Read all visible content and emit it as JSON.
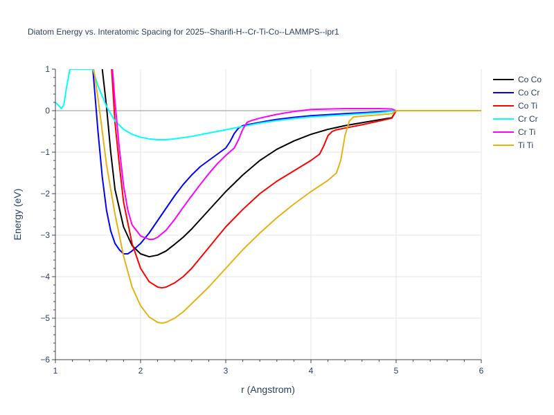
{
  "chart_data": {
    "type": "line",
    "title": "Diatom Energy vs. Interatomic Spacing for 2025--Sharifi-H--Cr-Ti-Co--LAMMPS--ipr1",
    "xlabel": "r (Angstrom)",
    "ylabel": "Energy (eV)",
    "xlim": [
      1,
      6
    ],
    "ylim": [
      -6,
      1
    ],
    "xticks": [
      "1",
      "2",
      "3",
      "4",
      "5",
      "6"
    ],
    "yticks": [
      "−6",
      "−5",
      "−4",
      "−3",
      "−2",
      "−1",
      "0",
      "1"
    ],
    "grid": true,
    "legend_position": "top-right",
    "series": [
      {
        "name": "Co Co",
        "color": "#000000",
        "x": [
          1.55,
          1.6,
          1.65,
          1.7,
          1.8,
          1.9,
          2.0,
          2.1,
          2.2,
          2.3,
          2.4,
          2.5,
          2.6,
          2.8,
          3.0,
          3.2,
          3.4,
          3.6,
          3.8,
          4.0,
          4.2,
          4.4,
          4.6,
          4.8,
          4.95,
          5.0,
          6.0
        ],
        "y": [
          1.0,
          0.1,
          -1.0,
          -1.9,
          -2.8,
          -3.25,
          -3.45,
          -3.52,
          -3.48,
          -3.38,
          -3.22,
          -3.05,
          -2.85,
          -2.4,
          -1.95,
          -1.55,
          -1.2,
          -0.93,
          -0.73,
          -0.57,
          -0.45,
          -0.36,
          -0.29,
          -0.22,
          -0.17,
          0.0,
          0.0
        ]
      },
      {
        "name": "Co Cr",
        "color": "#0000ff",
        "x": [
          1.44,
          1.5,
          1.55,
          1.6,
          1.65,
          1.7,
          1.75,
          1.8,
          1.85,
          1.9,
          2.0,
          2.1,
          2.2,
          2.3,
          2.4,
          2.5,
          2.6,
          2.7,
          2.8,
          2.9,
          3.0,
          3.05,
          3.1,
          3.15,
          3.2,
          3.4,
          3.6,
          3.8,
          4.0,
          4.4,
          4.8,
          5.0,
          6.0
        ],
        "y": [
          1.0,
          -0.5,
          -1.6,
          -2.4,
          -2.9,
          -3.2,
          -3.35,
          -3.45,
          -3.45,
          -3.38,
          -3.2,
          -2.95,
          -2.65,
          -2.35,
          -2.05,
          -1.78,
          -1.55,
          -1.35,
          -1.2,
          -1.05,
          -0.9,
          -0.75,
          -0.55,
          -0.42,
          -0.36,
          -0.28,
          -0.21,
          -0.16,
          -0.12,
          -0.07,
          -0.03,
          0.0,
          0.0
        ]
      },
      {
        "name": "Co Ti",
        "color": "#ff0000",
        "x": [
          1.66,
          1.7,
          1.75,
          1.8,
          1.9,
          2.0,
          2.1,
          2.2,
          2.25,
          2.3,
          2.4,
          2.5,
          2.6,
          2.8,
          3.0,
          3.2,
          3.4,
          3.6,
          3.8,
          4.0,
          4.1,
          4.15,
          4.2,
          4.25,
          4.3,
          4.4,
          4.6,
          4.8,
          4.95,
          5.0,
          6.0
        ],
        "y": [
          1.0,
          -0.3,
          -1.3,
          -2.2,
          -3.2,
          -3.8,
          -4.12,
          -4.25,
          -4.27,
          -4.25,
          -4.15,
          -4.0,
          -3.8,
          -3.3,
          -2.8,
          -2.38,
          -2.0,
          -1.7,
          -1.45,
          -1.2,
          -1.05,
          -0.85,
          -0.6,
          -0.5,
          -0.46,
          -0.42,
          -0.34,
          -0.25,
          -0.18,
          0.0,
          0.0
        ]
      },
      {
        "name": "Cr Cr",
        "color": "#00ffff",
        "x": [
          1.0,
          1.04,
          1.07,
          1.1,
          1.13,
          1.17,
          1.44,
          1.5,
          1.6,
          1.7,
          1.8,
          1.9,
          2.0,
          2.1,
          2.2,
          2.3,
          2.4,
          2.6,
          2.8,
          3.0,
          3.2,
          3.4,
          3.6,
          3.8,
          4.0,
          4.4,
          4.8,
          5.0,
          6.0
        ],
        "y": [
          0.2,
          0.12,
          0.05,
          0.15,
          0.55,
          1.0,
          1.0,
          0.6,
          0.1,
          -0.25,
          -0.45,
          -0.57,
          -0.64,
          -0.68,
          -0.7,
          -0.7,
          -0.68,
          -0.62,
          -0.54,
          -0.46,
          -0.38,
          -0.3,
          -0.24,
          -0.19,
          -0.15,
          -0.1,
          -0.05,
          0.0,
          0.0
        ]
      },
      {
        "name": "Cr Ti",
        "color": "#ff00ff",
        "x": [
          1.67,
          1.7,
          1.75,
          1.8,
          1.85,
          1.9,
          2.0,
          2.1,
          2.15,
          2.2,
          2.3,
          2.4,
          2.5,
          2.6,
          2.7,
          2.8,
          2.9,
          3.0,
          3.1,
          3.15,
          3.2,
          3.25,
          3.3,
          3.4,
          3.6,
          3.8,
          4.0,
          4.4,
          4.8,
          4.95,
          5.0,
          6.0
        ],
        "y": [
          1.0,
          0.2,
          -0.9,
          -1.8,
          -2.4,
          -2.75,
          -3.02,
          -3.1,
          -3.1,
          -3.05,
          -2.88,
          -2.62,
          -2.33,
          -2.05,
          -1.78,
          -1.52,
          -1.28,
          -1.08,
          -0.9,
          -0.7,
          -0.45,
          -0.28,
          -0.24,
          -0.18,
          -0.09,
          -0.02,
          0.03,
          0.05,
          0.05,
          0.04,
          0.0,
          0.0
        ]
      },
      {
        "name": "Ti Ti",
        "color": "#e6b212",
        "x": [
          1.45,
          1.5,
          1.55,
          1.6,
          1.7,
          1.8,
          1.9,
          2.0,
          2.1,
          2.2,
          2.25,
          2.3,
          2.4,
          2.5,
          2.6,
          2.8,
          3.0,
          3.2,
          3.4,
          3.6,
          3.8,
          4.0,
          4.2,
          4.3,
          4.35,
          4.4,
          4.45,
          4.5,
          4.8,
          4.95,
          5.0,
          6.0
        ],
        "y": [
          1.0,
          0.3,
          -0.5,
          -1.3,
          -2.5,
          -3.5,
          -4.25,
          -4.7,
          -4.97,
          -5.1,
          -5.12,
          -5.1,
          -5.0,
          -4.85,
          -4.65,
          -4.25,
          -3.8,
          -3.35,
          -2.95,
          -2.58,
          -2.25,
          -1.95,
          -1.68,
          -1.5,
          -1.2,
          -0.6,
          -0.25,
          -0.15,
          -0.1,
          -0.07,
          0.0,
          0.0
        ]
      }
    ]
  }
}
